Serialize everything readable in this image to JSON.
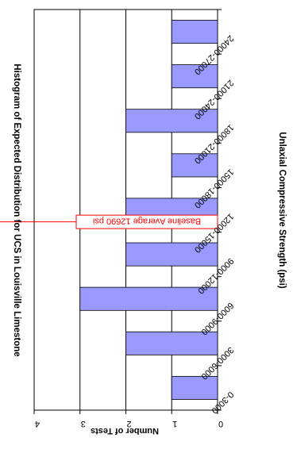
{
  "chart_data": {
    "type": "bar",
    "orientation": "rotated",
    "title": "Histogram of Expected Distribution for UCS in Louisville Limestone",
    "xlabel": "Unlaxial Compressive Strength (psi)",
    "ylabel": "Number of Tests",
    "categories": [
      "0-3000",
      "3000-6000",
      "6000-9000",
      "9000-12000",
      "12000-15000",
      "15000-18000",
      "18000-21000",
      "21000-24000",
      "24000-27000"
    ],
    "values": [
      1,
      2,
      3,
      2,
      2,
      1,
      2,
      1,
      1
    ],
    "ylim": [
      0,
      4
    ],
    "yticks": [
      "0",
      "1",
      "2",
      "3",
      "4"
    ],
    "grid": true,
    "annotation": {
      "label": "Baseline Average 12690 psi",
      "x_value": 12690
    },
    "colors": {
      "bar_fill": "#9999ff",
      "bar_stroke": "#000000",
      "baseline_line": "#ff0000",
      "annotation_border": "#ff0000",
      "annotation_text": "#ff0000"
    }
  }
}
